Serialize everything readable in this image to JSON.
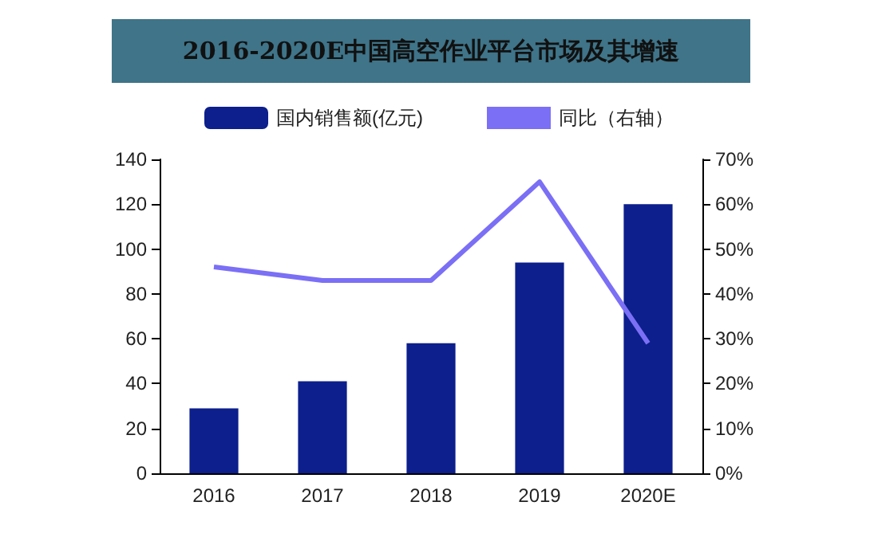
{
  "chart_data": {
    "type": "bar",
    "title": "2016-2020E中国高空作业平台市场及其增速",
    "categories": [
      "2016",
      "2017",
      "2018",
      "2019",
      "2020E"
    ],
    "series": [
      {
        "name": "国内销售额(亿元)",
        "color": "#0c1f8c",
        "values": [
          29,
          41,
          58,
          94,
          120
        ]
      },
      {
        "name": "同比（右轴）",
        "type": "line",
        "axis": "y2",
        "color": "#7b6ff5",
        "values": [
          46,
          43,
          43,
          65,
          29
        ]
      }
    ],
    "ylim": [
      0,
      140
    ],
    "yticks": [
      0,
      20,
      40,
      60,
      80,
      100,
      120,
      140
    ],
    "y2lim": [
      0,
      70
    ],
    "y2ticks": [
      {
        "value": 0,
        "label": "0%"
      },
      {
        "value": 10,
        "label": "10%"
      },
      {
        "value": 20,
        "label": "20%"
      },
      {
        "value": 30,
        "label": "30%"
      },
      {
        "value": 40,
        "label": "40%"
      },
      {
        "value": 50,
        "label": "50%"
      },
      {
        "value": 60,
        "label": "60%"
      },
      {
        "value": 70,
        "label": "70%"
      }
    ],
    "legend": "top",
    "grid": false,
    "marker": "none"
  }
}
